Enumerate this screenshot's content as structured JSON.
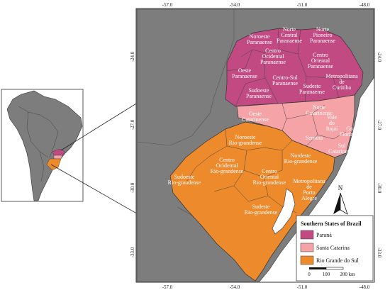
{
  "colors": {
    "parana": "#c14a83",
    "santa_catarina": "#f5a3a6",
    "rio_grande_do_sul": "#ed8a2b",
    "ocean": "#ffffff",
    "land": "#7d7d7d",
    "border": "#333333"
  },
  "coords": {
    "top_lon": [
      "-57.0",
      "-54.0",
      "-51.0",
      "-48.0"
    ],
    "bottom_lon": [
      "-57.0",
      "-54.0",
      "-51.0",
      "-48.0"
    ],
    "left_lat": [
      "-24.0",
      "-27.0",
      "-30.0",
      "-33.0"
    ],
    "right_lat": [
      "-24.0",
      "-27.0",
      "-30.0",
      "-33.0"
    ]
  },
  "regions": {
    "noroeste_paranaense": [
      "Noroeste",
      "Paranaense"
    ],
    "norte_central": [
      "Norte",
      "Central",
      "Paranaense"
    ],
    "norte_pioneiro": [
      "Norte",
      "Pioneiro",
      "Paranaense"
    ],
    "centro_ocidental": [
      "Centro",
      "Ocidental",
      "Paranaense"
    ],
    "centro_oriental": [
      "Centro",
      "Oriental",
      "Paranaense"
    ],
    "oeste_paranaense": [
      "Oeste",
      "Paranaense"
    ],
    "centro_sul": [
      "Centro-Sul",
      "Paranaense"
    ],
    "metropolitana_curitiba": [
      "Metropolitana",
      "de",
      "Curitiba"
    ],
    "sudoeste_paranaense": [
      "Sudoeste",
      "Paranaense"
    ],
    "sudeste_paranaense": [
      "Sudeste",
      "Paranaense"
    ],
    "norte_catarinense": [
      "Norte",
      "Catarinense"
    ],
    "oeste_catarinense": [
      "Oeste",
      "Catarinense"
    ],
    "vale_itajai": [
      "Vale",
      "do",
      "Itajaí"
    ],
    "grande_florianopolis": [
      "Grande",
      "Florianópolis"
    ],
    "serrana": [
      "Serrana"
    ],
    "sul_catarinense": [
      "Sul",
      "Catarinense"
    ],
    "noroeste_rg": [
      "Noroeste",
      "Rio-grandense"
    ],
    "nordeste_rg": [
      "Nordeste",
      "Rio-grandense"
    ],
    "centro_ocidental_rg": [
      "Centro",
      "Ocidental",
      "Rio-grandense"
    ],
    "centro_oriental_rg": [
      "Centro",
      "Oriental",
      "Rio-grandense"
    ],
    "sudoeste_rg": [
      "Sudoeste",
      "Rio-grandense"
    ],
    "metropolitana_porto_alegre": [
      "Metropolitana",
      "de",
      "Porto",
      "Alegre"
    ],
    "sudeste_rg": [
      "Sudeste",
      "Rio-grandense"
    ]
  },
  "legend": {
    "title": "Southern States of Brazil",
    "items": [
      "Paraná",
      "Santa Catarina",
      "Rio Grande do Sul"
    ]
  },
  "north_arrow": {
    "label": "N"
  },
  "scale_bar": {
    "labels": [
      "0",
      "100",
      "200 km"
    ]
  }
}
